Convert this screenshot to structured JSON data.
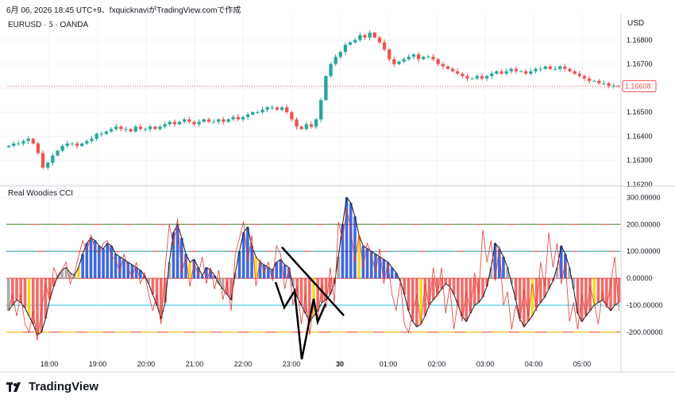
{
  "header": {
    "timestamp_line": "6月 06, 2026 18:45 UTC+9、fxquicknaviがTradingView.comで作成"
  },
  "chart_meta": {
    "symbol_line": "EURUSD · 5 · OANDA",
    "currency": "USD",
    "indicator_name": "Real Woodies CCI",
    "brand": "TradingView"
  },
  "colors": {
    "up": "#26a69a",
    "down": "#ef5350",
    "price_badge": "#ef5350",
    "cci_blue": "#1e4fd8",
    "cci_gray": "#9e9e9e",
    "cci_red": "#ef5350",
    "cci_yellow": "#f2d300",
    "line_red": "#e53935",
    "line_cyan": "#26c6da",
    "line_green": "#4caf50",
    "line_yellow": "#ffd600"
  },
  "chart_data": [
    {
      "type": "candlestick",
      "title": "EURUSD · 5 · OANDA",
      "y_ticks": [
        "1.16800",
        "1.16700",
        "1.16600",
        "1.16500",
        "1.16400",
        "1.16300",
        "1.16200"
      ],
      "last_price": "1.16608",
      "ylim": [
        1.162,
        1.169
      ],
      "x_ticks": [
        "18:00",
        "19:00",
        "20:00",
        "21:00",
        "22:00",
        "23:00",
        "30",
        "01:00",
        "02:00",
        "03:00",
        "04:00",
        "05:00"
      ],
      "close_series": [
        1.1636,
        1.1637,
        1.1637,
        1.1638,
        1.1639,
        1.1637,
        1.1633,
        1.1627,
        1.1629,
        1.1632,
        1.1634,
        1.1636,
        1.1637,
        1.1637,
        1.1636,
        1.1637,
        1.1638,
        1.1639,
        1.1641,
        1.1641,
        1.1642,
        1.1643,
        1.1644,
        1.1643,
        1.1643,
        1.1642,
        1.1644,
        1.1643,
        1.1643,
        1.1644,
        1.1643,
        1.1644,
        1.1645,
        1.1646,
        1.1645,
        1.1646,
        1.1647,
        1.1646,
        1.1645,
        1.1646,
        1.1647,
        1.1646,
        1.1646,
        1.1647,
        1.1646,
        1.1647,
        1.1648,
        1.1647,
        1.1648,
        1.1649,
        1.165,
        1.165,
        1.1651,
        1.1652,
        1.1652,
        1.1651,
        1.1652,
        1.165,
        1.1647,
        1.1644,
        1.1643,
        1.1645,
        1.1644,
        1.1647,
        1.1655,
        1.1665,
        1.167,
        1.1673,
        1.1675,
        1.1678,
        1.1679,
        1.168,
        1.1682,
        1.1681,
        1.1683,
        1.1681,
        1.1679,
        1.1676,
        1.1672,
        1.167,
        1.1671,
        1.1672,
        1.1673,
        1.1674,
        1.1672,
        1.1673,
        1.1673,
        1.1672,
        1.167,
        1.1669,
        1.1668,
        1.1667,
        1.1666,
        1.1665,
        1.1664,
        1.1664,
        1.1665,
        1.1664,
        1.1665,
        1.1666,
        1.1667,
        1.1666,
        1.1667,
        1.1668,
        1.1667,
        1.1667,
        1.1666,
        1.1667,
        1.1668,
        1.1668,
        1.1669,
        1.1668,
        1.1668,
        1.1669,
        1.1668,
        1.1667,
        1.1666,
        1.1665,
        1.1664,
        1.1663,
        1.1663,
        1.1662,
        1.1662,
        1.1661,
        1.1661,
        1.16608
      ]
    },
    {
      "type": "bar",
      "title": "Real Woodies CCI",
      "y_ticks": [
        "300.00000",
        "200.00000",
        "100.00000",
        "0.00000",
        "-100.00000",
        "-200.00000"
      ],
      "ylim": [
        -330,
        310
      ],
      "levels": [
        200,
        100,
        0,
        -100,
        -200
      ],
      "cci_values": [
        -120,
        -100,
        -80,
        -90,
        -110,
        -140,
        -170,
        -210,
        -200,
        -150,
        -80,
        -30,
        10,
        30,
        40,
        20,
        10,
        40,
        90,
        130,
        150,
        140,
        120,
        110,
        130,
        120,
        90,
        80,
        70,
        60,
        50,
        40,
        30,
        10,
        -20,
        -60,
        -100,
        -150,
        -90,
        60,
        170,
        200,
        150,
        90,
        60,
        70,
        40,
        10,
        40,
        30,
        10,
        -20,
        -40,
        -60,
        -80,
        20,
        100,
        170,
        190,
        120,
        80,
        60,
        50,
        40,
        30,
        60,
        70,
        50,
        40,
        -30,
        -70,
        -100,
        -130,
        -160,
        -140,
        -120,
        -90,
        -80,
        -60,
        -20,
        80,
        200,
        300,
        280,
        230,
        160,
        120,
        110,
        100,
        90,
        80,
        70,
        60,
        40,
        20,
        -10,
        -60,
        -120,
        -160,
        -180,
        -170,
        -140,
        -100,
        -80,
        -60,
        -40,
        -20,
        -30,
        -60,
        -100,
        -140,
        -160,
        -130,
        -100,
        -90,
        -70,
        -30,
        40,
        130,
        110,
        80,
        40,
        -20,
        -80,
        -150,
        -180,
        -160,
        -140,
        -110,
        -90,
        -70,
        -40,
        -10,
        40,
        120,
        90,
        40,
        -40,
        -130,
        -160,
        -140,
        -120,
        -100,
        -90,
        -80,
        -100,
        -120,
        -100,
        -90
      ],
      "line_values": [
        -120,
        -60,
        -140,
        -60,
        -170,
        -200,
        -120,
        -230,
        -120,
        -20,
        -80,
        40,
        0,
        30,
        60,
        -20,
        20,
        80,
        140,
        100,
        160,
        110,
        90,
        130,
        140,
        80,
        70,
        20,
        90,
        40,
        0,
        60,
        -20,
        20,
        -60,
        -120,
        -60,
        -170,
        40,
        200,
        120,
        220,
        20,
        80,
        -30,
        60,
        10,
        80,
        -20,
        40,
        -40,
        30,
        -80,
        -10,
        -120,
        90,
        150,
        210,
        60,
        160,
        -30,
        70,
        20,
        60,
        -10,
        120,
        90,
        -40,
        40,
        -100,
        -30,
        -170,
        -60,
        -210,
        -90,
        -150,
        -20,
        -110,
        40,
        -90,
        210,
        140,
        260,
        180,
        60,
        160,
        40,
        130,
        90,
        20,
        110,
        -20,
        60,
        -60,
        -120,
        -10,
        -170,
        -200,
        -130,
        -60,
        -170,
        -20,
        -110,
        40,
        -70,
        40,
        -130,
        -30,
        -190,
        -80,
        -160,
        -50,
        -120,
        20,
        -60,
        180,
        60,
        140,
        -10,
        120,
        -100,
        -50,
        -190,
        -100,
        -160,
        -40,
        -140,
        -20,
        -120,
        60,
        -30,
        170,
        40,
        130,
        -20,
        60,
        -160,
        -90,
        -190,
        -60,
        -140,
        -30,
        -90,
        -170,
        -50,
        -110,
        -20,
        80,
        -120
      ]
    }
  ]
}
